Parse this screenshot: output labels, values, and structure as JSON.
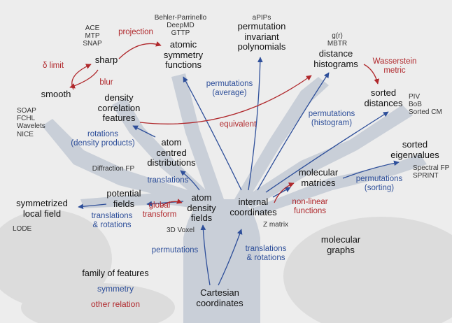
{
  "colors": {
    "symmetry": "#2e4f9a",
    "relation": "#b0282c",
    "feature": "#111111",
    "method": "#333333",
    "tree": "#c9cfd8",
    "blob": "#dcdcdc",
    "background": "#ededed"
  },
  "nodes": [
    {
      "key": "cartesian",
      "lines": [
        "Cartesian",
        "coordinates"
      ]
    },
    {
      "key": "internal",
      "lines": [
        "internal",
        "coordinates"
      ]
    },
    {
      "key": "molecular_graphs",
      "lines": [
        "molecular",
        "graphs"
      ]
    },
    {
      "key": "molecular_matrices",
      "lines": [
        "molecular",
        "matrices"
      ]
    },
    {
      "key": "sorted_eigen",
      "lines": [
        "sorted",
        "eigenvalues"
      ]
    },
    {
      "key": "atom_density",
      "lines": [
        "atom",
        "density",
        "fields"
      ]
    },
    {
      "key": "potential",
      "lines": [
        "potential",
        "fields"
      ]
    },
    {
      "key": "symmetrized",
      "lines": [
        "symmetrized",
        "local field"
      ]
    },
    {
      "key": "acd",
      "lines": [
        "atom",
        "centred",
        "distributions"
      ]
    },
    {
      "key": "dcf",
      "lines": [
        "density",
        "correlation",
        "features"
      ]
    },
    {
      "key": "smooth",
      "lines": [
        "smooth"
      ]
    },
    {
      "key": "sharp",
      "lines": [
        "sharp"
      ]
    },
    {
      "key": "asf",
      "lines": [
        "atomic",
        "symmetry",
        "functions"
      ]
    },
    {
      "key": "pip",
      "lines": [
        "permutation",
        "invariant",
        "polynomials"
      ]
    },
    {
      "key": "dist_hist",
      "lines": [
        "distance",
        "histograms"
      ]
    },
    {
      "key": "sorted_dist",
      "lines": [
        "sorted",
        "distances"
      ]
    }
  ],
  "methods": [
    {
      "key": "m_acemtp",
      "lines": [
        "ACE",
        "MTP",
        "SNAP"
      ]
    },
    {
      "key": "m_behler",
      "lines": [
        "Behler-Parrinello",
        "DeepMD",
        "GTTP"
      ]
    },
    {
      "key": "m_apips",
      "lines": [
        "aPIPs"
      ]
    },
    {
      "key": "m_gr",
      "lines": [
        "g(r)",
        "MBTR"
      ]
    },
    {
      "key": "m_piv",
      "lines": [
        "PIV",
        "BoB",
        "Sorted CM"
      ]
    },
    {
      "key": "m_soap",
      "lines": [
        "SOAP",
        "FCHL",
        "Wavelets",
        "NICE"
      ]
    },
    {
      "key": "m_diff",
      "lines": [
        "Diffraction FP"
      ]
    },
    {
      "key": "m_spectral",
      "lines": [
        "Spectral FP",
        "SPRINT"
      ]
    },
    {
      "key": "m_lode",
      "lines": [
        "LODE"
      ]
    },
    {
      "key": "m_voxel",
      "lines": [
        "3D Voxel"
      ]
    },
    {
      "key": "m_zmatrix",
      "lines": [
        "Z matrix"
      ]
    }
  ],
  "edge_labels": [
    {
      "key": "e_perm",
      "kind": "symmetry",
      "lines": [
        "permutations"
      ]
    },
    {
      "key": "e_transrot_int",
      "kind": "symmetry",
      "lines": [
        "translations",
        "& rotations"
      ]
    },
    {
      "key": "e_translations",
      "kind": "symmetry",
      "lines": [
        "translations"
      ]
    },
    {
      "key": "e_transrot_pot",
      "kind": "symmetry",
      "lines": [
        "translations",
        "& rotations"
      ]
    },
    {
      "key": "e_global",
      "kind": "relation",
      "lines": [
        "global",
        "transform"
      ]
    },
    {
      "key": "e_nonlinear",
      "kind": "relation",
      "lines": [
        "non-linear",
        "functions"
      ]
    },
    {
      "key": "e_perm_sort",
      "kind": "symmetry",
      "lines": [
        "permutations",
        "(sorting)"
      ]
    },
    {
      "key": "e_perm_hist",
      "kind": "symmetry",
      "lines": [
        "permutations",
        "(histogram)"
      ]
    },
    {
      "key": "e_perm_avg",
      "kind": "symmetry",
      "lines": [
        "permutations",
        "(average)"
      ]
    },
    {
      "key": "e_equivalent",
      "kind": "relation",
      "lines": [
        "equivalent"
      ]
    },
    {
      "key": "e_rot_dens",
      "kind": "symmetry",
      "lines": [
        "rotations",
        "(density products)"
      ]
    },
    {
      "key": "e_delta",
      "kind": "relation",
      "lines": [
        "δ limit"
      ]
    },
    {
      "key": "e_blur",
      "kind": "relation",
      "lines": [
        "blur"
      ]
    },
    {
      "key": "e_projection",
      "kind": "relation",
      "lines": [
        "projection"
      ]
    },
    {
      "key": "e_wasserstein",
      "kind": "relation",
      "lines": [
        "Wasserstein",
        "metric"
      ]
    }
  ],
  "legend": {
    "family": "family of features",
    "symmetry": "symmetry",
    "relation": "other relation"
  }
}
